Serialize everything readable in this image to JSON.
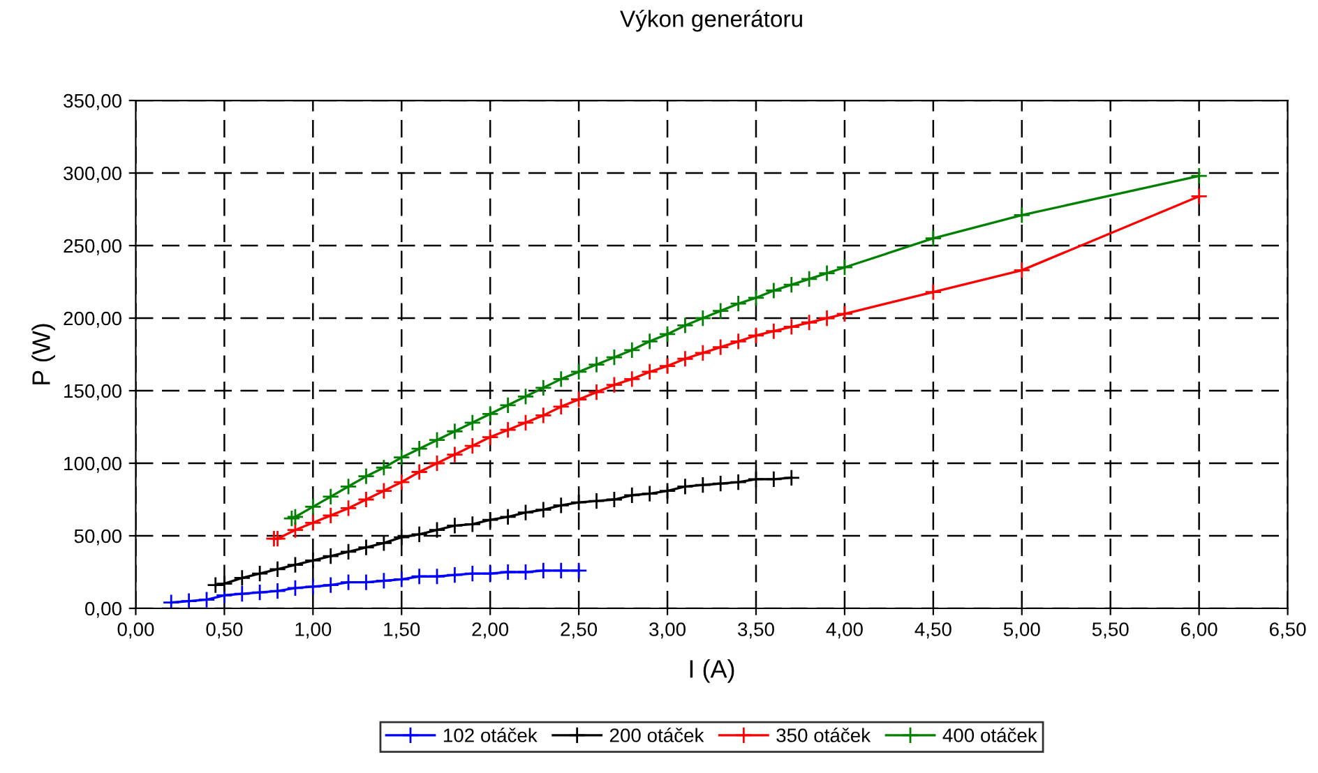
{
  "chart_data": {
    "type": "line",
    "title": "Výkon generátoru",
    "xlabel": "I (A)",
    "ylabel": "P (W)",
    "xlim": [
      0,
      6.5
    ],
    "ylim": [
      0,
      350
    ],
    "xticks": [
      {
        "value": 0,
        "label": "0,00"
      },
      {
        "value": 0.5,
        "label": "0,50"
      },
      {
        "value": 1,
        "label": "1,00"
      },
      {
        "value": 1.5,
        "label": "1,50"
      },
      {
        "value": 2,
        "label": "2,00"
      },
      {
        "value": 2.5,
        "label": "2,50"
      },
      {
        "value": 3,
        "label": "3,00"
      },
      {
        "value": 3.5,
        "label": "3,50"
      },
      {
        "value": 4,
        "label": "4,00"
      },
      {
        "value": 4.5,
        "label": "4,50"
      },
      {
        "value": 5,
        "label": "5,00"
      },
      {
        "value": 5.5,
        "label": "5,50"
      },
      {
        "value": 6,
        "label": "6,00"
      },
      {
        "value": 6.5,
        "label": "6,50"
      }
    ],
    "yticks": [
      {
        "value": 0,
        "label": "0,00"
      },
      {
        "value": 50,
        "label": "50,00"
      },
      {
        "value": 100,
        "label": "100,00"
      },
      {
        "value": 150,
        "label": "150,00"
      },
      {
        "value": 200,
        "label": "200,00"
      },
      {
        "value": 250,
        "label": "250,00"
      },
      {
        "value": 300,
        "label": "300,00"
      },
      {
        "value": 350,
        "label": "350,00"
      }
    ],
    "grid": true,
    "legend": "bottom",
    "marker": "cross",
    "line_style": "solid",
    "series": [
      {
        "name": "102 otáček",
        "color": "#0000ff",
        "x": [
          0.2,
          0.3,
          0.4,
          0.5,
          0.6,
          0.7,
          0.8,
          0.9,
          1.0,
          1.1,
          1.2,
          1.3,
          1.4,
          1.5,
          1.6,
          1.7,
          1.8,
          1.9,
          2.0,
          2.1,
          2.2,
          2.3,
          2.4,
          2.5
        ],
        "values": [
          4,
          5,
          6,
          9,
          10,
          11,
          12,
          14,
          15,
          16,
          18,
          18,
          19,
          20,
          22,
          22,
          23,
          24,
          24,
          25,
          25,
          26,
          26,
          26
        ]
      },
      {
        "name": "200 otáček",
        "color": "#000000",
        "x": [
          0.45,
          0.5,
          0.6,
          0.7,
          0.8,
          0.9,
          1.0,
          1.1,
          1.2,
          1.3,
          1.4,
          1.5,
          1.6,
          1.7,
          1.8,
          1.9,
          2.0,
          2.1,
          2.2,
          2.3,
          2.4,
          2.5,
          2.6,
          2.7,
          2.8,
          2.9,
          3.0,
          3.1,
          3.2,
          3.3,
          3.4,
          3.5,
          3.6,
          3.7
        ],
        "values": [
          16,
          17,
          21,
          24,
          27,
          30,
          33,
          36,
          39,
          42,
          45,
          49,
          51,
          54,
          57,
          58,
          61,
          63,
          66,
          68,
          71,
          73,
          74,
          75,
          78,
          79,
          81,
          84,
          85,
          86,
          87,
          89,
          89,
          90
        ]
      },
      {
        "name": "350 otáček",
        "color": "#ff0000",
        "x": [
          0.78,
          0.8,
          0.9,
          1.0,
          1.1,
          1.2,
          1.3,
          1.4,
          1.5,
          1.6,
          1.7,
          1.8,
          1.9,
          2.0,
          2.1,
          2.2,
          2.3,
          2.4,
          2.5,
          2.6,
          2.7,
          2.8,
          2.9,
          3.0,
          3.1,
          3.2,
          3.3,
          3.4,
          3.5,
          3.6,
          3.7,
          3.8,
          3.9,
          4.0,
          4.5,
          5.0,
          6.0
        ],
        "values": [
          48,
          48,
          54,
          59,
          64,
          69,
          75,
          81,
          87,
          94,
          100,
          106,
          112,
          118,
          123,
          128,
          133,
          139,
          144,
          149,
          154,
          158,
          163,
          167,
          172,
          176,
          180,
          184,
          188,
          191,
          194,
          197,
          200,
          203,
          218,
          233,
          284
        ]
      },
      {
        "name": "400 otáček",
        "color": "#008000",
        "x": [
          0.88,
          0.9,
          1.0,
          1.1,
          1.2,
          1.3,
          1.4,
          1.5,
          1.6,
          1.7,
          1.8,
          1.9,
          2.0,
          2.1,
          2.2,
          2.3,
          2.4,
          2.5,
          2.6,
          2.7,
          2.8,
          2.9,
          3.0,
          3.1,
          3.2,
          3.3,
          3.4,
          3.5,
          3.6,
          3.7,
          3.8,
          3.9,
          4.0,
          4.5,
          5.0,
          6.0
        ],
        "values": [
          62,
          63,
          70,
          77,
          84,
          91,
          97,
          104,
          110,
          116,
          122,
          128,
          134,
          140,
          146,
          152,
          158,
          163,
          168,
          173,
          178,
          184,
          189,
          195,
          200,
          205,
          210,
          214,
          219,
          223,
          227,
          231,
          235,
          255,
          271,
          298
        ]
      }
    ]
  }
}
